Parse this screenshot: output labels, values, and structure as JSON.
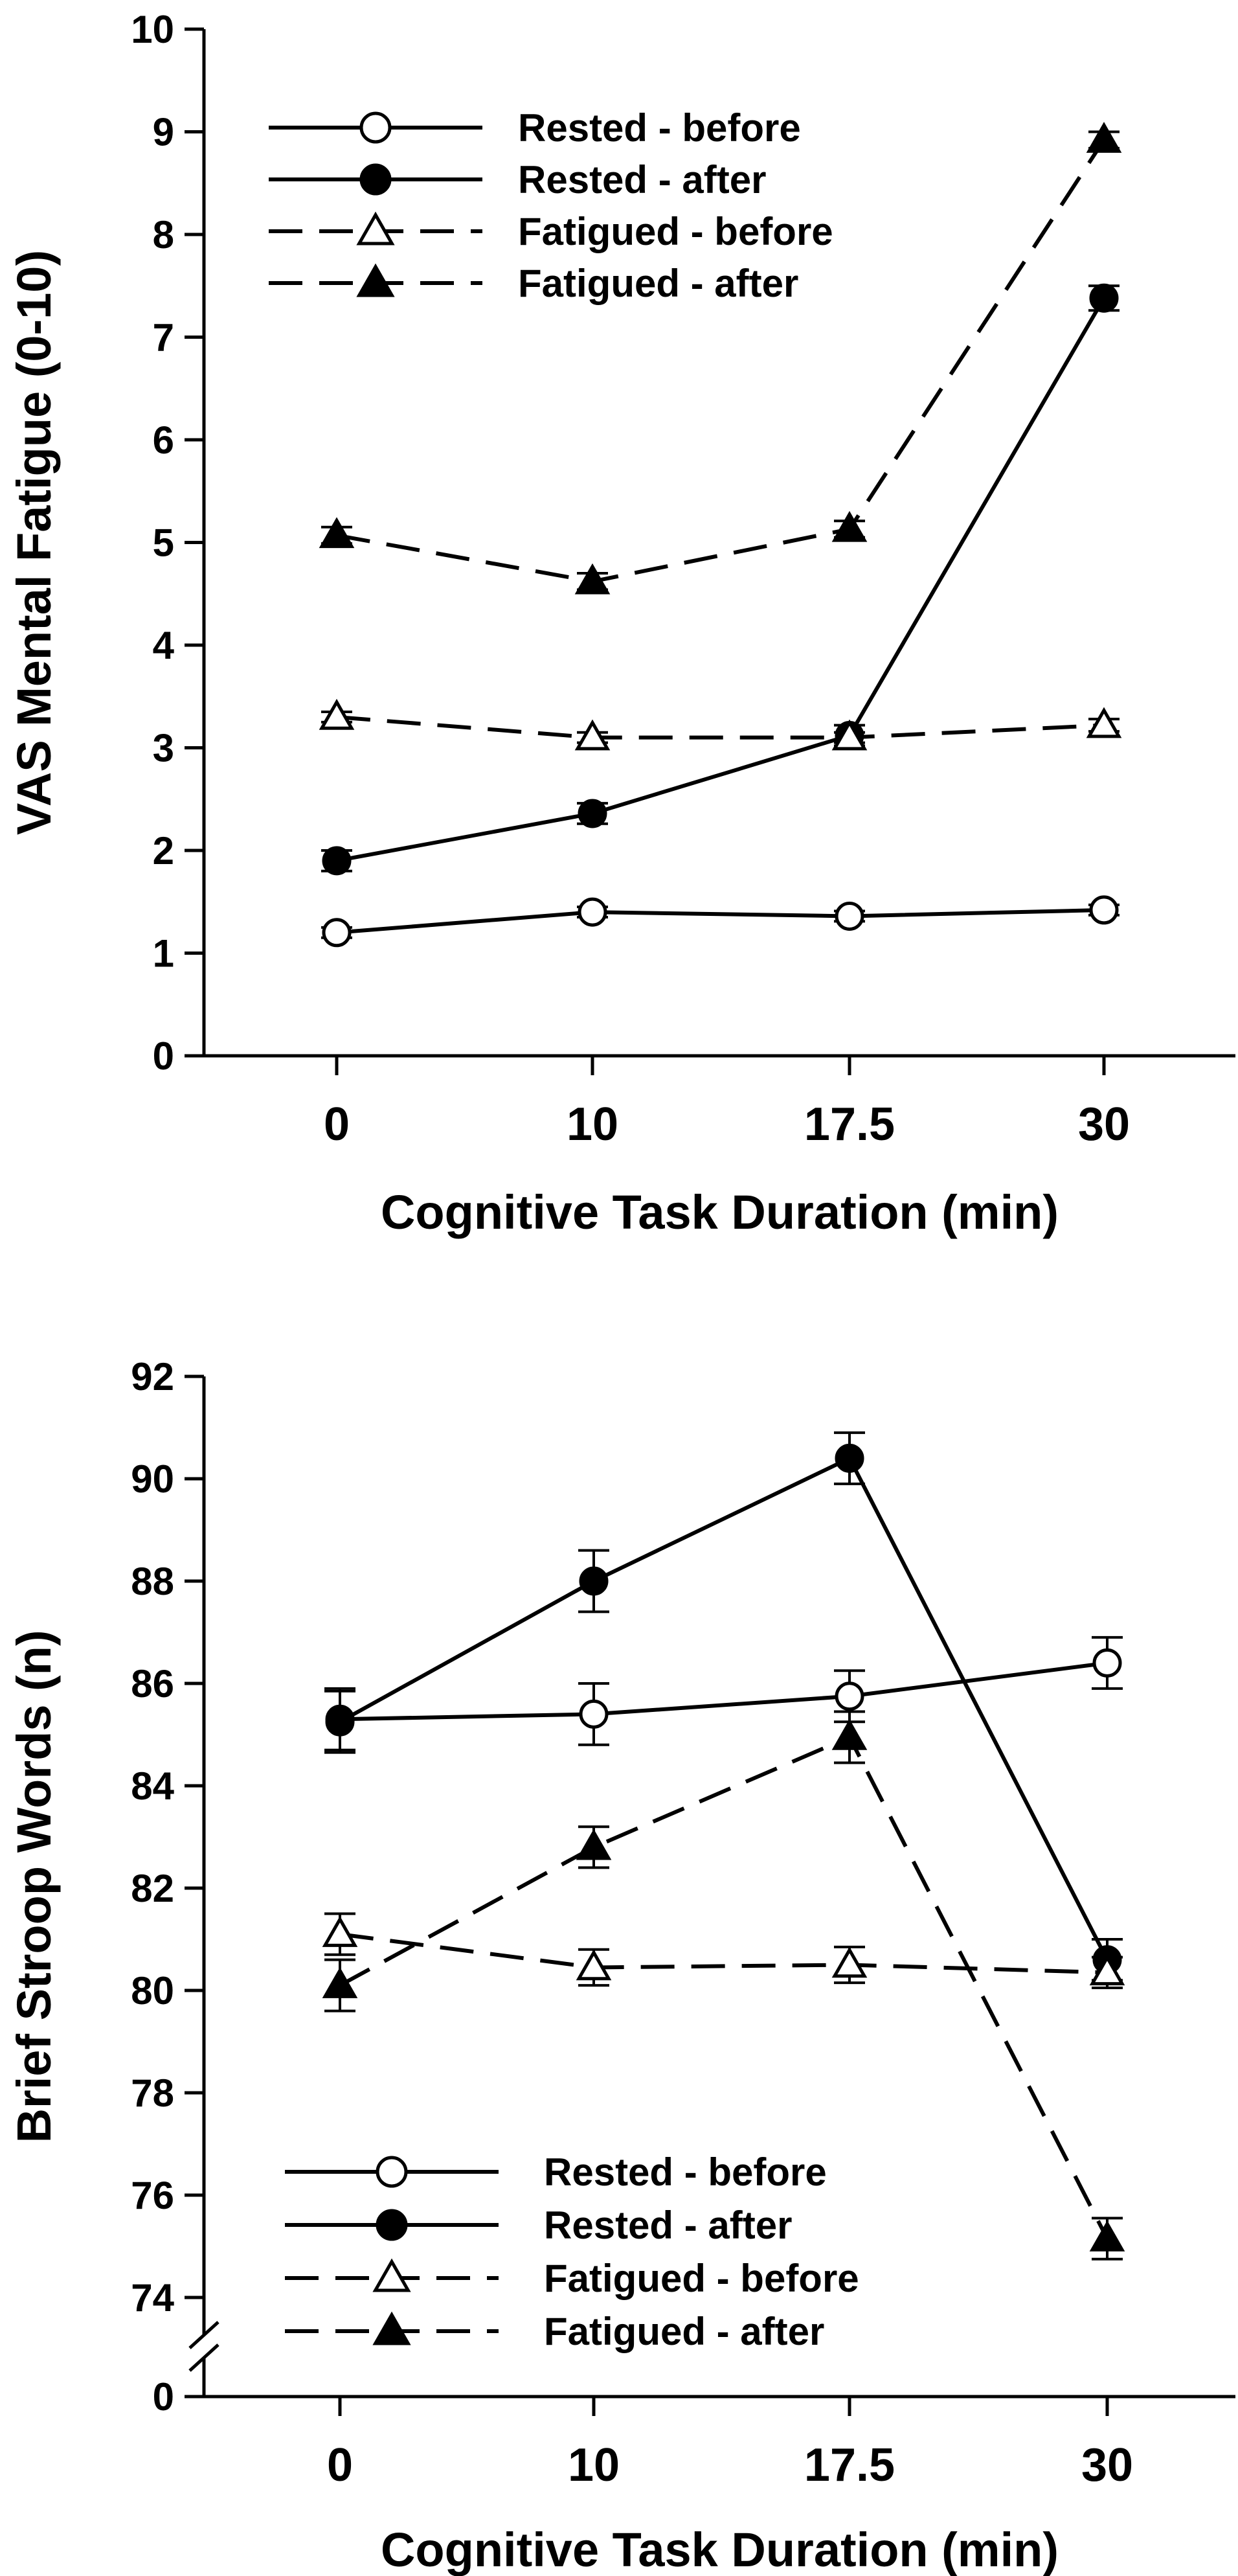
{
  "chart_data": [
    {
      "type": "line",
      "ylabel": "VAS Mental Fatigue (0-10)",
      "xlabel": "Cognitive Task Duration (min)",
      "categories": [
        "0",
        "10",
        "17.5",
        "30"
      ],
      "ylim": [
        0,
        10
      ],
      "yticks": [
        "0",
        "1",
        "2",
        "3",
        "4",
        "5",
        "6",
        "7",
        "8",
        "9",
        "10"
      ],
      "legend_position": "top-left",
      "series": [
        {
          "name": "Rested - before",
          "marker": "circle",
          "fill": "open",
          "line": "solid",
          "values": [
            1.2,
            1.4,
            1.36,
            1.42
          ],
          "errors": [
            0.05,
            0.05,
            0.05,
            0.05
          ]
        },
        {
          "name": "Rested - after",
          "marker": "circle",
          "fill": "filled",
          "line": "solid",
          "values": [
            1.9,
            2.36,
            3.12,
            7.38
          ],
          "errors": [
            0.1,
            0.1,
            0.1,
            0.12
          ]
        },
        {
          "name": "Fatigued - before",
          "marker": "triangle",
          "fill": "open",
          "line": "dashed",
          "values": [
            3.3,
            3.1,
            3.1,
            3.22
          ],
          "errors": [
            0.05,
            0.05,
            0.05,
            0.06
          ]
        },
        {
          "name": "Fatigued - after",
          "marker": "triangle",
          "fill": "filled",
          "line": "dashed",
          "values": [
            5.07,
            4.62,
            5.13,
            8.92
          ],
          "errors": [
            0.08,
            0.08,
            0.08,
            0.08
          ]
        }
      ]
    },
    {
      "type": "line",
      "ylabel": "Brief Stroop Words (n)",
      "xlabel": "Cognitive Task Duration (min)",
      "categories": [
        "0",
        "10",
        "17.5",
        "30"
      ],
      "ylim": [
        74,
        92
      ],
      "axis_break": true,
      "yticks": [
        "74",
        "76",
        "78",
        "80",
        "82",
        "84",
        "86",
        "88",
        "90",
        "92"
      ],
      "ybreak_label": "0",
      "legend_position": "bottom-left",
      "series": [
        {
          "name": "Rested - before",
          "marker": "circle",
          "fill": "open",
          "line": "solid",
          "values": [
            85.3,
            85.4,
            85.75,
            86.4
          ],
          "errors": [
            0.6,
            0.6,
            0.5,
            0.5
          ]
        },
        {
          "name": "Rested - after",
          "marker": "circle",
          "fill": "filled",
          "line": "solid",
          "values": [
            85.25,
            88.0,
            90.4,
            80.6
          ],
          "errors": [
            0.6,
            0.6,
            0.5,
            0.4
          ]
        },
        {
          "name": "Fatigued - before",
          "marker": "triangle",
          "fill": "open",
          "line": "dashed",
          "values": [
            81.1,
            80.45,
            80.5,
            80.35
          ],
          "errors": [
            0.4,
            0.35,
            0.35,
            0.3
          ]
        },
        {
          "name": "Fatigued - after",
          "marker": "triangle",
          "fill": "filled",
          "line": "dashed",
          "values": [
            80.1,
            82.8,
            84.95,
            75.15
          ],
          "errors": [
            0.5,
            0.4,
            0.5,
            0.4
          ]
        }
      ]
    }
  ]
}
